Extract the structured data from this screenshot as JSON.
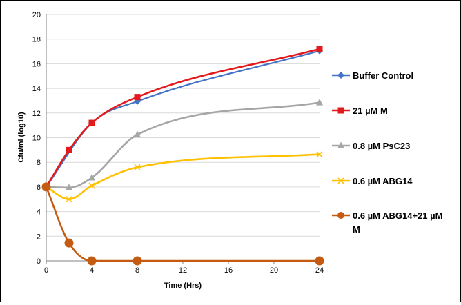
{
  "chart_data": {
    "type": "line",
    "title": "",
    "xlabel": "Time (Hrs)",
    "ylabel": "Cfu/ml (log10)",
    "xlim": [
      0,
      24
    ],
    "ylim": [
      0,
      20
    ],
    "x_ticks": [
      0,
      4,
      8,
      12,
      16,
      20,
      24
    ],
    "y_ticks": [
      0,
      2,
      4,
      6,
      8,
      10,
      12,
      14,
      16,
      18,
      20
    ],
    "grid": "horizontal",
    "legend_position": "right",
    "series": [
      {
        "name": "Buffer Control",
        "color": "#4472C4",
        "marker": "diamond",
        "x": [
          0,
          4,
          8,
          24
        ],
        "y": [
          6.0,
          11.2,
          12.95,
          17.05
        ]
      },
      {
        "name": "21 µM M",
        "color": "#E31A1C",
        "marker": "square",
        "x": [
          0,
          2,
          4,
          8,
          24
        ],
        "y": [
          6.0,
          9.0,
          11.2,
          13.3,
          17.2
        ]
      },
      {
        "name": "0.8 µM PsC23",
        "color": "#A6A6A6",
        "marker": "triangle",
        "x": [
          0,
          2,
          4,
          8,
          24
        ],
        "y": [
          6.0,
          5.95,
          6.75,
          10.25,
          12.85
        ]
      },
      {
        "name": "0.6 µM ABG14",
        "color": "#FFC000",
        "marker": "x",
        "x": [
          0,
          2,
          4,
          8,
          24
        ],
        "y": [
          6.0,
          5.0,
          6.1,
          7.6,
          8.65
        ]
      },
      {
        "name": "0.6 µM ABG14+21 µM M",
        "name_lines": [
          "0.6 µM ABG14+21 µM",
          "M"
        ],
        "color": "#C55A11",
        "marker": "circle",
        "x": [
          0,
          2,
          4,
          8,
          24
        ],
        "y": [
          6.0,
          1.45,
          0.0,
          0.0,
          0.0
        ]
      }
    ]
  }
}
